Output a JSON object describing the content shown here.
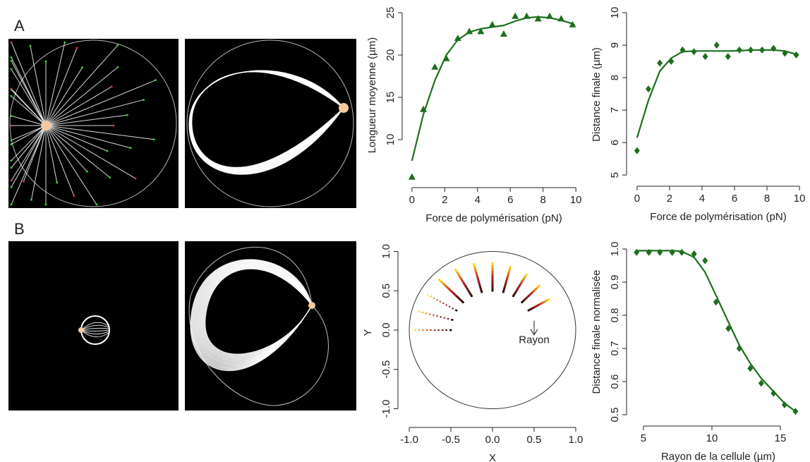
{
  "panel_labels": [
    "A",
    "B"
  ],
  "chart_data": [
    {
      "type": "scatter",
      "xlabel": "Force de polymérisation (pN)",
      "ylabel": "Longueur moyenne (µm)",
      "xlim": [
        -0.25,
        10.25
      ],
      "ylim": [
        5,
        25.5
      ],
      "xticks": [
        0,
        2,
        4,
        6,
        8,
        10
      ],
      "yticks": [
        10,
        15,
        20,
        25
      ],
      "series": [
        {
          "marker": "triangle",
          "color": "#1e6e1e",
          "x": [
            0,
            0.7,
            1.4,
            2.1,
            2.8,
            3.5,
            4.2,
            4.9,
            5.6,
            6.3,
            7,
            7.7,
            8.4,
            9.1,
            9.8
          ],
          "values": [
            5.6,
            13.6,
            18.6,
            19.6,
            22,
            22.8,
            22.8,
            23.6,
            22.5,
            24.6,
            24.6,
            24.3,
            24.6,
            24.3,
            23.6
          ]
        },
        {
          "marker": "line",
          "color": "#1e6e1e",
          "x": [
            0,
            0.7,
            1.4,
            2.1,
            2.8,
            3.5,
            4.2,
            4.9,
            5.6,
            6.3,
            7,
            7.7,
            8.4,
            9.1,
            9.8
          ],
          "values": [
            7.5,
            13,
            17,
            20,
            21.8,
            22.7,
            23.1,
            23.3,
            23.5,
            24,
            24.4,
            24.5,
            24.4,
            24.1,
            23.7
          ]
        }
      ]
    },
    {
      "type": "scatter",
      "xlabel": "Force de polymérisation (pN)",
      "ylabel": "Distance finale (µm)",
      "xlim": [
        -0.3,
        10.3
      ],
      "ylim": [
        4.83,
        10.13
      ],
      "xticks": [
        0,
        2,
        4,
        6,
        8,
        10
      ],
      "yticks": [
        5,
        6,
        7,
        8,
        9,
        10
      ],
      "series": [
        {
          "marker": "diamond",
          "color": "#1e6e1e",
          "x": [
            0,
            0.7,
            1.4,
            2.1,
            2.8,
            3.5,
            4.2,
            4.9,
            5.6,
            6.3,
            7,
            7.7,
            8.4,
            9.1,
            9.8
          ],
          "values": [
            5.75,
            7.65,
            8.45,
            8.5,
            8.85,
            8.8,
            8.65,
            9.0,
            8.65,
            8.85,
            8.85,
            8.85,
            8.9,
            8.75,
            8.7
          ]
        },
        {
          "marker": "line",
          "color": "#1e6e1e",
          "x": [
            0,
            0.7,
            1.4,
            2.1,
            2.8,
            3.5,
            4.2,
            4.9,
            5.6,
            6.3,
            7,
            7.7,
            8.4,
            9.1,
            9.8
          ],
          "values": [
            6.15,
            7.3,
            8.2,
            8.6,
            8.8,
            8.82,
            8.82,
            8.82,
            8.82,
            8.83,
            8.85,
            8.85,
            8.85,
            8.82,
            8.72
          ]
        }
      ]
    },
    {
      "type": "trajectory",
      "xlabel": "X",
      "ylabel": "Y",
      "annotation": "Rayon",
      "xlim": [
        -1.068,
        1.068
      ],
      "ylim": [
        -1.166,
        1.103
      ],
      "xticks": [
        {
          "value": -1,
          "label": "-1.0"
        },
        -0.5,
        {
          "value": 0,
          "label": "0.0"
        },
        0.5,
        {
          "value": 1,
          "label": "1.0"
        }
      ],
      "yticks": [
        {
          "value": -1,
          "label": "-1.0"
        },
        -0.5,
        {
          "value": 0,
          "label": "0.0"
        },
        0.5,
        {
          "value": 1,
          "label": "1.0"
        }
      ]
    },
    {
      "type": "scatter",
      "xlabel": "Rayon de la cellule (µm)",
      "ylabel": "Distance finale normalisée",
      "xlim": [
        4.18,
        16.75
      ],
      "ylim": [
        0.483,
        1.017
      ],
      "xticks": [
        5,
        10,
        15
      ],
      "yticks": [
        0.5,
        0.6,
        0.7,
        0.8,
        0.9,
        {
          "value": 1,
          "label": "1.0"
        }
      ],
      "series": [
        {
          "marker": "diamond",
          "color": "#1e6e1e",
          "x": [
            4.5,
            5.4,
            6.2,
            7.1,
            7.8,
            8.7,
            9.5,
            10.3,
            11.2,
            12,
            12.8,
            13.6,
            14.5,
            15.3,
            16.1
          ],
          "values": [
            0.99,
            0.99,
            0.99,
            0.99,
            0.99,
            0.985,
            0.965,
            0.84,
            0.76,
            0.7,
            0.64,
            0.595,
            0.565,
            0.53,
            0.51
          ]
        },
        {
          "marker": "line",
          "color": "#1e6e1e",
          "x": [
            4.5,
            5.4,
            6.2,
            7.1,
            7.8,
            8.7,
            9.5,
            10.3,
            11.2,
            12,
            12.8,
            13.6,
            14.5,
            15.3,
            16.1
          ],
          "values": [
            0.995,
            0.995,
            0.995,
            0.995,
            0.993,
            0.975,
            0.93,
            0.86,
            0.78,
            0.71,
            0.655,
            0.61,
            0.57,
            0.535,
            0.51
          ]
        }
      ]
    }
  ]
}
